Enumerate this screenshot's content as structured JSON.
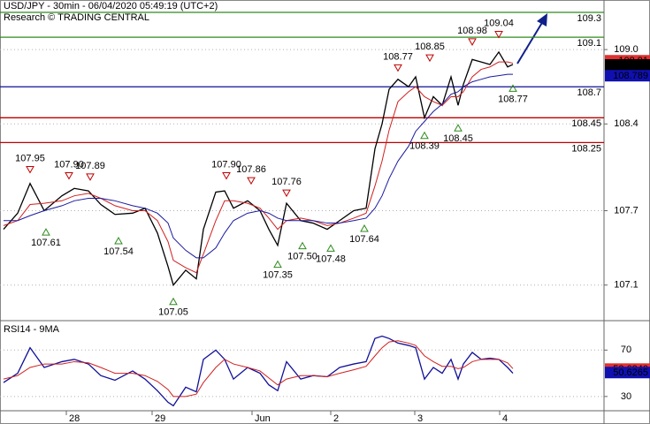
{
  "chart_data": [
    {
      "type": "line",
      "title": "USD/JPY - 30min - 06/04/2020 05:49:19 (UTC+2)",
      "subtitle": "Research © TRADING CENTRAL",
      "x": [
        2,
        10,
        17,
        25,
        35,
        42,
        50,
        57,
        65,
        75,
        82,
        89,
        95,
        98,
        105,
        111,
        115,
        122,
        127,
        132,
        140,
        147,
        152,
        157,
        162,
        170,
        177,
        185,
        192,
        200,
        207,
        212,
        216,
        220,
        225,
        231,
        235,
        240,
        245,
        250,
        255,
        259,
        262,
        267,
        272,
        277,
        282,
        287,
        290
      ],
      "xlim": [
        0,
        341.5
      ],
      "ylim": [
        106.82,
        109.4
      ],
      "yticks": [
        {
          "value": 109.0,
          "label": "109.0"
        },
        108.4,
        107.7,
        107.1
      ],
      "grid": true,
      "series": [
        {
          "color": "#000000",
          "values": [
            107.55,
            107.68,
            107.92,
            107.7,
            107.82,
            107.88,
            107.86,
            107.75,
            107.67,
            107.68,
            107.72,
            107.52,
            107.25,
            107.1,
            107.22,
            107.15,
            107.55,
            107.85,
            107.86,
            107.72,
            107.78,
            107.7,
            107.55,
            107.42,
            107.76,
            107.62,
            107.6,
            107.55,
            107.62,
            107.7,
            107.72,
            108.2,
            108.4,
            108.68,
            108.76,
            108.7,
            108.78,
            108.45,
            108.62,
            108.55,
            108.78,
            108.55,
            108.72,
            108.92,
            108.9,
            108.88,
            108.98,
            108.86,
            108.88
          ]
        },
        {
          "color": "#d02020",
          "values": [
            107.58,
            107.62,
            107.75,
            107.76,
            107.78,
            107.82,
            107.84,
            107.8,
            107.74,
            107.7,
            107.7,
            107.62,
            107.45,
            107.3,
            107.24,
            107.2,
            107.35,
            107.62,
            107.78,
            107.78,
            107.76,
            107.72,
            107.64,
            107.55,
            107.62,
            107.64,
            107.62,
            107.58,
            107.6,
            107.64,
            107.68,
            107.9,
            108.1,
            108.35,
            108.58,
            108.66,
            108.7,
            108.62,
            108.58,
            108.55,
            108.62,
            108.62,
            108.66,
            108.78,
            108.84,
            108.86,
            108.9,
            108.9,
            108.89
          ]
        },
        {
          "color": "#1a1aa0",
          "values": [
            107.62,
            107.62,
            107.66,
            107.7,
            107.74,
            107.78,
            107.8,
            107.8,
            107.78,
            107.74,
            107.72,
            107.68,
            107.6,
            107.48,
            107.38,
            107.32,
            107.32,
            107.4,
            107.52,
            107.62,
            107.68,
            107.7,
            107.68,
            107.64,
            107.62,
            107.62,
            107.62,
            107.6,
            107.6,
            107.62,
            107.64,
            107.72,
            107.82,
            107.96,
            108.1,
            108.22,
            108.34,
            108.42,
            108.5,
            108.56,
            108.64,
            108.66,
            108.7,
            108.74,
            108.76,
            108.78,
            108.79,
            108.8,
            108.8
          ]
        }
      ],
      "levels": [
        {
          "value": 109.3,
          "label": "109.3",
          "color": "#2e8b1e"
        },
        {
          "value": 109.1,
          "label": "109.1",
          "color": "#2e8b1e"
        },
        {
          "value": 108.7,
          "label": "108.7",
          "color": "#10109a"
        },
        {
          "value": 108.45,
          "label": "108.45",
          "color": "#c00000"
        },
        {
          "value": 108.25,
          "label": "108.25",
          "color": "#c00000"
        }
      ],
      "price_labels": [
        {
          "value": 108.91,
          "label": "108.91",
          "color": "#e03030"
        },
        {
          "value": 108.876,
          "label": "108.876",
          "color": "#000000"
        },
        {
          "value": 108.789,
          "label": "108.789",
          "color": "#1010b0"
        }
      ],
      "annotations": [
        {
          "x": 17,
          "value": 107.95,
          "label": "107.95",
          "kind": "high"
        },
        {
          "x": 39,
          "value": 107.9,
          "label": "107.90",
          "kind": "high"
        },
        {
          "x": 51,
          "value": 107.89,
          "label": "107.89",
          "kind": "high"
        },
        {
          "x": 128,
          "value": 107.9,
          "label": "107.90",
          "kind": "high"
        },
        {
          "x": 142,
          "value": 107.86,
          "label": "107.86",
          "kind": "high"
        },
        {
          "x": 162,
          "value": 107.76,
          "label": "107.76",
          "kind": "high"
        },
        {
          "x": 225,
          "value": 108.77,
          "label": "108.77",
          "kind": "high"
        },
        {
          "x": 243,
          "value": 108.85,
          "label": "108.85",
          "kind": "high"
        },
        {
          "x": 267,
          "value": 108.98,
          "label": "108.98",
          "kind": "high"
        },
        {
          "x": 282,
          "value": 109.04,
          "label": "109.04",
          "kind": "high"
        },
        {
          "x": 26,
          "value": 107.61,
          "label": "107.61",
          "kind": "low"
        },
        {
          "x": 67,
          "value": 107.54,
          "label": "107.54",
          "kind": "low"
        },
        {
          "x": 98,
          "value": 107.05,
          "label": "107.05",
          "kind": "low"
        },
        {
          "x": 157,
          "value": 107.35,
          "label": "107.35",
          "kind": "low"
        },
        {
          "x": 171,
          "value": 107.5,
          "label": "107.50",
          "kind": "low"
        },
        {
          "x": 187,
          "value": 107.48,
          "label": "107.48",
          "kind": "low"
        },
        {
          "x": 206,
          "value": 107.64,
          "label": "107.64",
          "kind": "low"
        },
        {
          "x": 240,
          "value": 108.39,
          "label": "108.39",
          "kind": "low"
        },
        {
          "x": 259,
          "value": 108.45,
          "label": "108.45",
          "kind": "low"
        },
        {
          "x": 290,
          "value": 108.77,
          "label": "108.77",
          "kind": "low"
        }
      ]
    },
    {
      "type": "line",
      "title": "RSI14 - 9MA",
      "x": [
        2,
        10,
        17,
        25,
        35,
        42,
        50,
        57,
        65,
        75,
        82,
        89,
        95,
        98,
        105,
        111,
        115,
        122,
        127,
        132,
        140,
        147,
        152,
        157,
        162,
        170,
        177,
        185,
        192,
        200,
        207,
        212,
        216,
        220,
        225,
        231,
        235,
        240,
        245,
        250,
        255,
        259,
        262,
        267,
        272,
        277,
        282,
        287,
        290
      ],
      "xlim": [
        0,
        341.5
      ],
      "ylim": [
        17.7,
        94.6
      ],
      "yticks": [
        70,
        30
      ],
      "grid": true,
      "xticks": [
        {
          "value": 37.5,
          "label": "28"
        },
        {
          "value": 86,
          "label": "29"
        },
        {
          "value": 142.5,
          "label": "Jun"
        },
        {
          "value": 187,
          "label": "2"
        },
        {
          "value": 234.5,
          "label": "3"
        },
        {
          "value": 282.5,
          "label": "4"
        }
      ],
      "series": [
        {
          "color": "#10109a",
          "values": [
            42,
            50,
            72,
            55,
            60,
            62,
            58,
            48,
            44,
            52,
            45,
            35,
            25,
            22,
            38,
            34,
            62,
            70,
            62,
            45,
            55,
            50,
            40,
            35,
            60,
            45,
            48,
            47,
            55,
            58,
            60,
            80,
            82,
            80,
            76,
            74,
            72,
            45,
            55,
            50,
            62,
            45,
            58,
            68,
            62,
            63,
            62,
            55,
            50
          ]
        },
        {
          "color": "#d02020",
          "values": [
            45,
            48,
            55,
            58,
            58,
            60,
            59,
            55,
            50,
            50,
            48,
            43,
            36,
            30,
            30,
            32,
            42,
            55,
            62,
            58,
            55,
            52,
            46,
            40,
            45,
            48,
            48,
            47,
            50,
            53,
            56,
            65,
            72,
            77,
            78,
            76,
            74,
            65,
            60,
            56,
            56,
            54,
            55,
            60,
            62,
            62,
            62,
            59,
            54
          ]
        }
      ],
      "price_labels": [
        {
          "value": 53.624,
          "label": "53.6240",
          "color": "#e03030"
        },
        {
          "value": 50.6265,
          "label": "50.6265",
          "color": "#1010b0"
        }
      ]
    }
  ]
}
